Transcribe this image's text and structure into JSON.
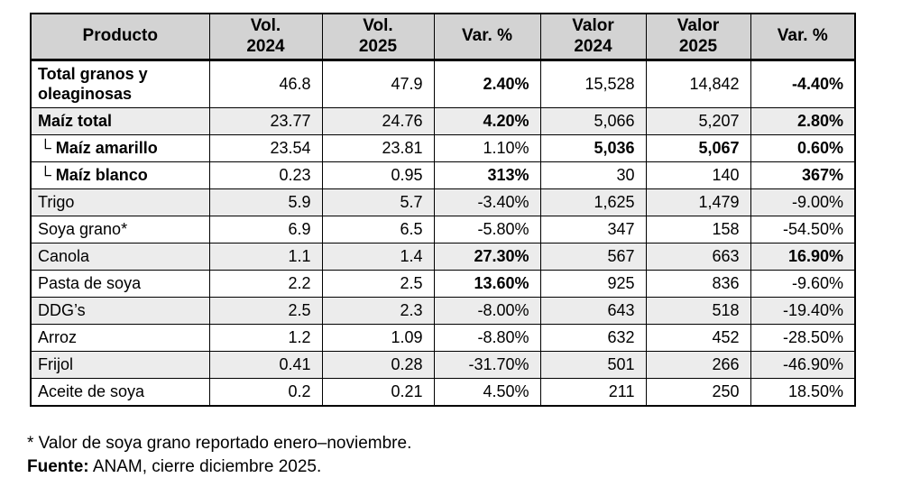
{
  "colors": {
    "header_bg": "#d3d3d3",
    "row_alt_bg": "#ececec",
    "border": "#000000"
  },
  "table": {
    "header": {
      "product": "Producto",
      "cols": [
        "Vol.\n2024",
        "Vol.\n2025",
        "Var. %",
        "Valor\n2024",
        "Valor\n2025",
        "Var. %"
      ]
    },
    "rows": [
      {
        "product": "Total granos y oleaginosas",
        "bold": true,
        "indent": false,
        "shaded": false,
        "cells": [
          {
            "v": "46.8"
          },
          {
            "v": "47.9"
          },
          {
            "v": "2.40%",
            "b": true
          },
          {
            "v": "15,528"
          },
          {
            "v": "14,842"
          },
          {
            "v": "-4.40%",
            "b": true
          }
        ]
      },
      {
        "product": "Maíz total",
        "bold": true,
        "indent": false,
        "shaded": true,
        "cells": [
          {
            "v": "23.77"
          },
          {
            "v": "24.76"
          },
          {
            "v": "4.20%",
            "b": true
          },
          {
            "v": "5,066"
          },
          {
            "v": "5,207"
          },
          {
            "v": "2.80%",
            "b": true
          }
        ]
      },
      {
        "product": "└ Maíz amarillo",
        "bold": true,
        "indent": true,
        "shaded": false,
        "cells": [
          {
            "v": "23.54"
          },
          {
            "v": "23.81"
          },
          {
            "v": "1.10%"
          },
          {
            "v": "5,036",
            "b": true
          },
          {
            "v": "5,067",
            "b": true
          },
          {
            "v": "0.60%",
            "b": true
          }
        ]
      },
      {
        "product": "└ Maíz blanco",
        "bold": true,
        "indent": true,
        "shaded": false,
        "cells": [
          {
            "v": "0.23"
          },
          {
            "v": "0.95"
          },
          {
            "v": "313%",
            "b": true
          },
          {
            "v": "30"
          },
          {
            "v": "140"
          },
          {
            "v": "367%",
            "b": true
          }
        ]
      },
      {
        "product": "Trigo",
        "bold": false,
        "indent": false,
        "shaded": true,
        "cells": [
          {
            "v": "5.9"
          },
          {
            "v": "5.7"
          },
          {
            "v": "-3.40%"
          },
          {
            "v": "1,625"
          },
          {
            "v": "1,479"
          },
          {
            "v": "-9.00%"
          }
        ]
      },
      {
        "product": "Soya grano*",
        "bold": false,
        "indent": false,
        "shaded": false,
        "cells": [
          {
            "v": "6.9"
          },
          {
            "v": "6.5"
          },
          {
            "v": "-5.80%"
          },
          {
            "v": "347"
          },
          {
            "v": "158"
          },
          {
            "v": "-54.50%"
          }
        ]
      },
      {
        "product": "Canola",
        "bold": false,
        "indent": false,
        "shaded": true,
        "cells": [
          {
            "v": "1.1"
          },
          {
            "v": "1.4"
          },
          {
            "v": "27.30%",
            "b": true
          },
          {
            "v": "567"
          },
          {
            "v": "663"
          },
          {
            "v": "16.90%",
            "b": true
          }
        ]
      },
      {
        "product": "Pasta de soya",
        "bold": false,
        "indent": false,
        "shaded": false,
        "cells": [
          {
            "v": "2.2"
          },
          {
            "v": "2.5"
          },
          {
            "v": "13.60%",
            "b": true
          },
          {
            "v": "925"
          },
          {
            "v": "836"
          },
          {
            "v": "-9.60%"
          }
        ]
      },
      {
        "product": "DDG’s",
        "bold": false,
        "indent": false,
        "shaded": true,
        "cells": [
          {
            "v": "2.5"
          },
          {
            "v": "2.3"
          },
          {
            "v": "-8.00%"
          },
          {
            "v": "643"
          },
          {
            "v": "518"
          },
          {
            "v": "-19.40%"
          }
        ]
      },
      {
        "product": "Arroz",
        "bold": false,
        "indent": false,
        "shaded": false,
        "cells": [
          {
            "v": "1.2"
          },
          {
            "v": "1.09"
          },
          {
            "v": "-8.80%"
          },
          {
            "v": "632"
          },
          {
            "v": "452"
          },
          {
            "v": "-28.50%"
          }
        ]
      },
      {
        "product": "Frijol",
        "bold": false,
        "indent": false,
        "shaded": true,
        "cells": [
          {
            "v": "0.41"
          },
          {
            "v": "0.28"
          },
          {
            "v": "-31.70%"
          },
          {
            "v": "501"
          },
          {
            "v": "266"
          },
          {
            "v": "-46.90%"
          }
        ]
      },
      {
        "product": "Aceite de soya",
        "bold": false,
        "indent": false,
        "shaded": false,
        "cells": [
          {
            "v": "0.2"
          },
          {
            "v": "0.21"
          },
          {
            "v": "4.50%"
          },
          {
            "v": "211"
          },
          {
            "v": "250"
          },
          {
            "v": "18.50%"
          }
        ]
      }
    ]
  },
  "footnotes": {
    "line1": "* Valor de soya grano reportado enero–noviembre.",
    "line2_label": "Fuente:",
    "line2_text": " ANAM, cierre diciembre 2025."
  },
  "chart_data": {
    "type": "table",
    "columns": [
      "Producto",
      "Vol. 2024",
      "Vol. 2025",
      "Var. %",
      "Valor 2024",
      "Valor 2025",
      "Var. %"
    ],
    "rows": [
      [
        "Total granos y oleaginosas",
        "46.8",
        "47.9",
        "2.40%",
        "15,528",
        "14,842",
        "-4.40%"
      ],
      [
        "Maíz total",
        "23.77",
        "24.76",
        "4.20%",
        "5,066",
        "5,207",
        "2.80%"
      ],
      [
        "└ Maíz amarillo",
        "23.54",
        "23.81",
        "1.10%",
        "5,036",
        "5,067",
        "0.60%"
      ],
      [
        "└ Maíz blanco",
        "0.23",
        "0.95",
        "313%",
        "30",
        "140",
        "367%"
      ],
      [
        "Trigo",
        "5.9",
        "5.7",
        "-3.40%",
        "1,625",
        "1,479",
        "-9.00%"
      ],
      [
        "Soya grano*",
        "6.9",
        "6.5",
        "-5.80%",
        "347",
        "158",
        "-54.50%"
      ],
      [
        "Canola",
        "1.1",
        "1.4",
        "27.30%",
        "567",
        "663",
        "16.90%"
      ],
      [
        "Pasta de soya",
        "2.2",
        "2.5",
        "13.60%",
        "925",
        "836",
        "-9.60%"
      ],
      [
        "DDG’s",
        "2.5",
        "2.3",
        "-8.00%",
        "643",
        "518",
        "-19.40%"
      ],
      [
        "Arroz",
        "1.2",
        "1.09",
        "-8.80%",
        "632",
        "452",
        "-28.50%"
      ],
      [
        "Frijol",
        "0.41",
        "0.28",
        "-31.70%",
        "501",
        "266",
        "-46.90%"
      ],
      [
        "Aceite de soya",
        "0.2",
        "0.21",
        "4.50%",
        "211",
        "250",
        "18.50%"
      ]
    ]
  }
}
